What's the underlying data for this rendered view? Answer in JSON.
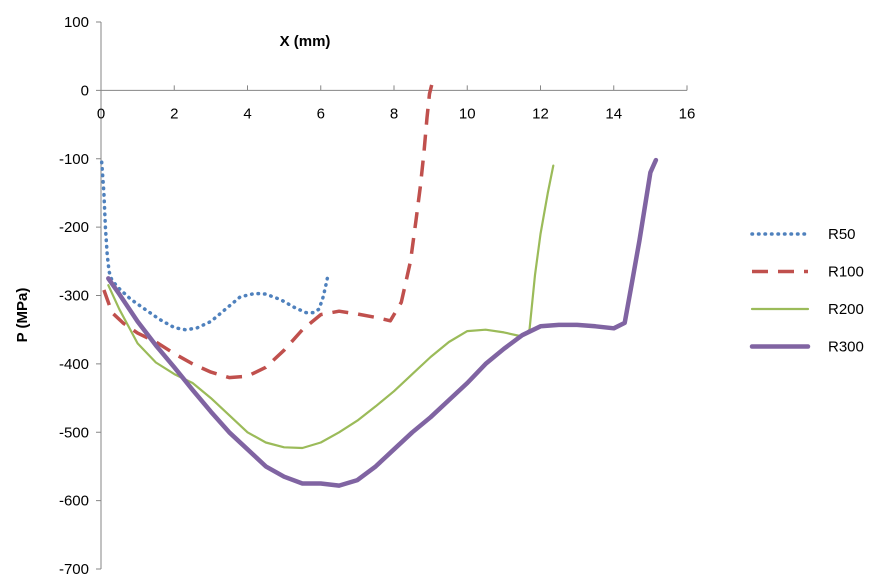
{
  "chart_data": {
    "type": "line",
    "xlabel": "X (mm)",
    "ylabel": "P (MPa)",
    "xlim": [
      0,
      16
    ],
    "ylim": [
      -700,
      100
    ],
    "x_ticks": [
      0,
      2,
      4,
      6,
      8,
      10,
      12,
      14,
      16
    ],
    "y_ticks": [
      100,
      0,
      -100,
      -200,
      -300,
      -400,
      -500,
      -600,
      -700
    ],
    "x_axis_position": "y=0 (labels above axis line)",
    "grid": false,
    "legend_position": "right",
    "series": [
      {
        "name": "R50",
        "color": "#4f81bd",
        "style": "dotted",
        "x": [
          0.02,
          0.08,
          0.12,
          0.17,
          0.22,
          0.3,
          0.5,
          0.8,
          1.2,
          1.6,
          2.0,
          2.3,
          2.6,
          3.0,
          3.4,
          3.8,
          4.2,
          4.5,
          4.9,
          5.3,
          5.6,
          5.8,
          5.95,
          6.05,
          6.12,
          6.18,
          6.22
        ],
        "y": [
          -105,
          -150,
          -200,
          -240,
          -265,
          -278,
          -290,
          -305,
          -320,
          -335,
          -347,
          -350,
          -348,
          -338,
          -320,
          -302,
          -297,
          -298,
          -306,
          -318,
          -325,
          -325,
          -320,
          -305,
          -290,
          -275,
          -268
        ]
      },
      {
        "name": "R100",
        "color": "#c0504d",
        "style": "dashed",
        "x": [
          0.08,
          0.3,
          0.6,
          1.0,
          1.5,
          2.0,
          2.5,
          3.0,
          3.5,
          4.0,
          4.5,
          5.0,
          5.5,
          6.0,
          6.5,
          7.0,
          7.5,
          7.9,
          8.2,
          8.45,
          8.6,
          8.72,
          8.82,
          8.9,
          8.97,
          9.03
        ],
        "y": [
          -292,
          -325,
          -340,
          -355,
          -368,
          -385,
          -400,
          -412,
          -420,
          -418,
          -405,
          -380,
          -350,
          -328,
          -323,
          -327,
          -332,
          -337,
          -310,
          -250,
          -190,
          -140,
          -90,
          -40,
          -5,
          8
        ]
      },
      {
        "name": "R200",
        "color": "#9bbb59",
        "style": "solid",
        "x": [
          0.2,
          0.5,
          1.0,
          1.5,
          2.0,
          2.5,
          3.0,
          3.5,
          4.0,
          4.5,
          5.0,
          5.5,
          6.0,
          6.5,
          7.0,
          7.5,
          8.0,
          8.5,
          9.0,
          9.5,
          10.0,
          10.5,
          11.0,
          11.5,
          11.7,
          11.85,
          12.0,
          12.2,
          12.35
        ],
        "y": [
          -285,
          -320,
          -370,
          -398,
          -415,
          -428,
          -450,
          -475,
          -500,
          -515,
          -522,
          -523,
          -515,
          -500,
          -483,
          -462,
          -440,
          -415,
          -390,
          -368,
          -352,
          -350,
          -354,
          -360,
          -350,
          -270,
          -210,
          -150,
          -110
        ]
      },
      {
        "name": "R300",
        "color": "#8064a2",
        "style": "solid-thick",
        "x": [
          0.2,
          0.5,
          1.0,
          1.5,
          2.0,
          2.5,
          3.0,
          3.5,
          4.0,
          4.5,
          5.0,
          5.5,
          6.0,
          6.5,
          7.0,
          7.5,
          8.0,
          8.5,
          9.0,
          9.5,
          10.0,
          10.5,
          11.0,
          11.5,
          12.0,
          12.5,
          13.0,
          13.5,
          14.0,
          14.3,
          14.5,
          14.7,
          14.85,
          15.0,
          15.15
        ],
        "y": [
          -275,
          -298,
          -338,
          -373,
          -405,
          -438,
          -470,
          -500,
          -525,
          -550,
          -565,
          -575,
          -575,
          -578,
          -570,
          -550,
          -525,
          -500,
          -478,
          -453,
          -428,
          -400,
          -378,
          -358,
          -345,
          -343,
          -343,
          -345,
          -348,
          -340,
          -280,
          -220,
          -170,
          -120,
          -102
        ]
      }
    ]
  }
}
